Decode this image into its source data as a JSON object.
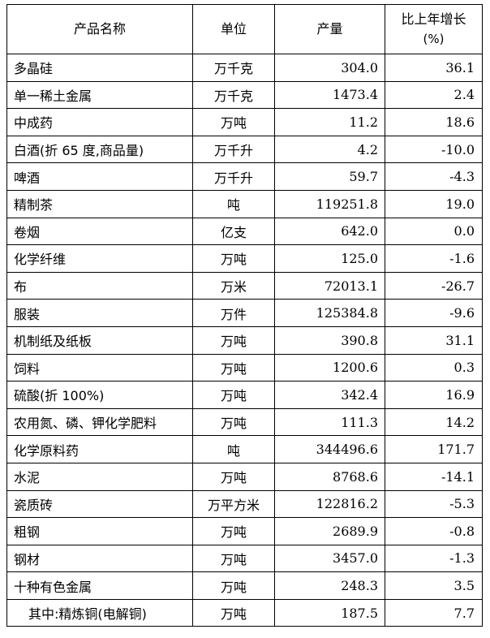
{
  "table": {
    "headers": {
      "name": "产品名称",
      "unit": "单位",
      "quantity": "产量",
      "growth_line1": "比上年增长",
      "growth_line2": "(%)"
    },
    "rows": [
      {
        "name": "多晶硅",
        "unit": "万千克",
        "quantity": "304.0",
        "growth": "36.1"
      },
      {
        "name": "单一稀土金属",
        "unit": "万千克",
        "quantity": "1473.4",
        "growth": "2.4"
      },
      {
        "name": "中成药",
        "unit": "万吨",
        "quantity": "11.2",
        "growth": "18.6"
      },
      {
        "name": "白酒(折 65 度,商品量)",
        "unit": "万千升",
        "quantity": "4.2",
        "growth": "-10.0"
      },
      {
        "name": "啤酒",
        "unit": "万千升",
        "quantity": "59.7",
        "growth": "-4.3"
      },
      {
        "name": "精制茶",
        "unit": "吨",
        "quantity": "119251.8",
        "growth": "19.0"
      },
      {
        "name": "卷烟",
        "unit": "亿支",
        "quantity": "642.0",
        "growth": "0.0"
      },
      {
        "name": "化学纤维",
        "unit": "万吨",
        "quantity": "125.0",
        "growth": "-1.6"
      },
      {
        "name": "布",
        "unit": "万米",
        "quantity": "72013.1",
        "growth": "-26.7"
      },
      {
        "name": "服装",
        "unit": "万件",
        "quantity": "125384.8",
        "growth": "-9.6"
      },
      {
        "name": "机制纸及纸板",
        "unit": "万吨",
        "quantity": "390.8",
        "growth": "31.1"
      },
      {
        "name": "饲料",
        "unit": "万吨",
        "quantity": "1200.6",
        "growth": "0.3"
      },
      {
        "name": "硫酸(折 100%)",
        "unit": "万吨",
        "quantity": "342.4",
        "growth": "16.9"
      },
      {
        "name": "农用氮、磷、钾化学肥料",
        "unit": "万吨",
        "quantity": "111.3",
        "growth": "14.2"
      },
      {
        "name": "化学原料药",
        "unit": "吨",
        "quantity": "344496.6",
        "growth": "171.7"
      },
      {
        "name": "水泥",
        "unit": "万吨",
        "quantity": "8768.6",
        "growth": "-14.1"
      },
      {
        "name": "瓷质砖",
        "unit": "万平方米",
        "quantity": "122816.2",
        "growth": "-5.3"
      },
      {
        "name": "粗钢",
        "unit": "万吨",
        "quantity": "2689.9",
        "growth": "-0.8"
      },
      {
        "name": "钢材",
        "unit": "万吨",
        "quantity": "3457.0",
        "growth": "-1.3"
      },
      {
        "name": "十种有色金属",
        "unit": "万吨",
        "quantity": "248.3",
        "growth": "3.5"
      },
      {
        "name": "其中:精炼铜(电解铜)",
        "unit": "万吨",
        "quantity": "187.5",
        "growth": "7.7"
      }
    ]
  }
}
